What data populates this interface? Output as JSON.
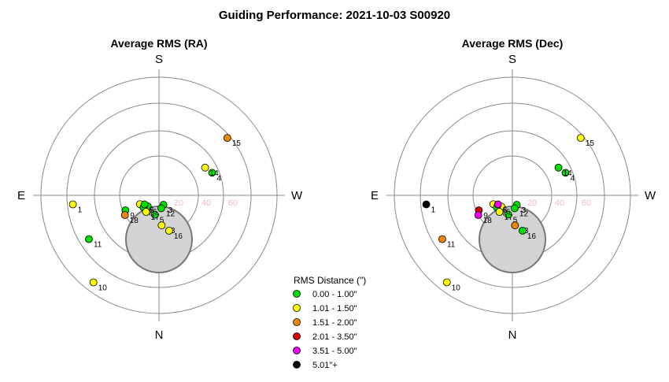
{
  "page": {
    "title": "Guiding Performance: 2021-10-03 S00920"
  },
  "compass": {
    "top": "S",
    "bottom": "N",
    "left": "E",
    "right": "W"
  },
  "legend": {
    "title": "RMS Distance (\")",
    "items": [
      {
        "label": "0.00 - 1.00\"",
        "color": "#00dd00"
      },
      {
        "label": "1.01 - 1.50\"",
        "color": "#ffff00"
      },
      {
        "label": "1.51 - 2.00\"",
        "color": "#ee8800"
      },
      {
        "label": "2.01 - 3.50\"",
        "color": "#dd0000"
      },
      {
        "label": "3.51 - 5.00\"",
        "color": "#ee00ee"
      },
      {
        "label": "5.01\"+",
        "color": "#000000"
      }
    ]
  },
  "chart_data": [
    {
      "type": "scatter",
      "projection": "polar",
      "title": "Average RMS (RA)",
      "radial_ticks": [
        "20",
        "40",
        "60"
      ],
      "points": [
        {
          "label": "1",
          "az": 96,
          "alt": 24,
          "bin": 1
        },
        {
          "label": "2",
          "az": 115,
          "alt": 74,
          "bin": 1
        },
        {
          "label": "3",
          "az": 205,
          "alt": 82,
          "bin": 0
        },
        {
          "label": "4",
          "az": 293,
          "alt": 46,
          "bin": 0
        },
        {
          "label": "5",
          "az": 168,
          "alt": 75,
          "bin": 0
        },
        {
          "label": "6",
          "az": 135,
          "alt": 78,
          "bin": 0
        },
        {
          "label": "7",
          "az": 128,
          "alt": 75,
          "bin": 0
        },
        {
          "label": "8",
          "az": 122,
          "alt": 77,
          "bin": 0
        },
        {
          "label": "9",
          "az": 114,
          "alt": 62,
          "bin": 0
        },
        {
          "label": "10",
          "az": 143,
          "alt": 7,
          "bin": 1
        },
        {
          "label": "11",
          "az": 122,
          "alt": 27,
          "bin": 0
        },
        {
          "label": "12",
          "az": 190,
          "alt": 80,
          "bin": 0
        },
        {
          "label": "13",
          "az": 185,
          "alt": 67,
          "bin": 1
        },
        {
          "label": "14",
          "az": 301,
          "alt": 49,
          "bin": 1
        },
        {
          "label": "15",
          "az": 310,
          "alt": 22,
          "bin": 2
        },
        {
          "label": "16",
          "az": 196,
          "alt": 62,
          "bin": 1
        },
        {
          "label": "17",
          "az": 142,
          "alt": 74,
          "bin": 1
        },
        {
          "label": "18",
          "az": 120,
          "alt": 60,
          "bin": 2
        }
      ]
    },
    {
      "type": "scatter",
      "projection": "polar",
      "title": "Average RMS (Dec)",
      "radial_ticks": [
        "20",
        "40",
        "60"
      ],
      "points": [
        {
          "label": "1",
          "az": 96,
          "alt": 24,
          "bin": 5
        },
        {
          "label": "2",
          "az": 115,
          "alt": 74,
          "bin": 1
        },
        {
          "label": "3",
          "az": 205,
          "alt": 82,
          "bin": 0
        },
        {
          "label": "4",
          "az": 293,
          "alt": 46,
          "bin": 0
        },
        {
          "label": "5",
          "az": 168,
          "alt": 75,
          "bin": 0
        },
        {
          "label": "6",
          "az": 135,
          "alt": 78,
          "bin": 1
        },
        {
          "label": "7",
          "az": 128,
          "alt": 75,
          "bin": 0
        },
        {
          "label": "8",
          "az": 122,
          "alt": 77,
          "bin": 4
        },
        {
          "label": "9",
          "az": 114,
          "alt": 62,
          "bin": 3
        },
        {
          "label": "10",
          "az": 143,
          "alt": 7,
          "bin": 1
        },
        {
          "label": "11",
          "az": 122,
          "alt": 27,
          "bin": 2
        },
        {
          "label": "12",
          "az": 190,
          "alt": 80,
          "bin": 0
        },
        {
          "label": "13",
          "az": 185,
          "alt": 67,
          "bin": 2
        },
        {
          "label": "14",
          "az": 301,
          "alt": 49,
          "bin": 0
        },
        {
          "label": "15",
          "az": 310,
          "alt": 22,
          "bin": 1
        },
        {
          "label": "16",
          "az": 196,
          "alt": 62,
          "bin": 0
        },
        {
          "label": "17",
          "az": 142,
          "alt": 74,
          "bin": 1
        },
        {
          "label": "18",
          "az": 120,
          "alt": 60,
          "bin": 4
        }
      ]
    }
  ]
}
